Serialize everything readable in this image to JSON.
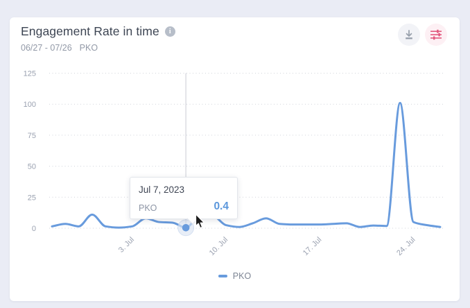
{
  "header": {
    "title": "Engagement Rate in time",
    "date_range": "06/27 - 07/26",
    "profile": "PKO"
  },
  "colors": {
    "background": "#eaecf5",
    "card": "#ffffff",
    "series_blue": "#689bdd",
    "tooltip_value_blue": "#5b97dc",
    "filter_icon_pink": "#e2587d",
    "download_icon_gray": "#99a1ad",
    "title_text": "#3d4553",
    "muted_text": "#9299a7",
    "axis_text": "#9aa1b0"
  },
  "tooltip": {
    "date": "Jul 7, 2023",
    "series": "PKO",
    "value": "0.4"
  },
  "chart_data": {
    "type": "line",
    "title": "Engagement Rate in time",
    "xlabel": "",
    "ylabel": "",
    "ylim": [
      0,
      125
    ],
    "y_ticks": [
      0,
      25,
      50,
      75,
      100,
      125
    ],
    "grid": "horizontal-dotted",
    "legend_position": "bottom",
    "x": [
      "Jun 27",
      "Jun 28",
      "Jun 29",
      "Jun 30",
      "Jul 1",
      "Jul 2",
      "Jul 3",
      "Jul 4",
      "Jul 5",
      "Jul 6",
      "Jul 7",
      "Jul 8",
      "Jul 9",
      "Jul 10",
      "Jul 11",
      "Jul 12",
      "Jul 13",
      "Jul 14",
      "Jul 15",
      "Jul 16",
      "Jul 17",
      "Jul 18",
      "Jul 19",
      "Jul 20",
      "Jul 21",
      "Jul 22",
      "Jul 23",
      "Jul 24",
      "Jul 25",
      "Jul 26"
    ],
    "x_ticks": [
      {
        "label": "3. Jul",
        "index": 6
      },
      {
        "label": "10. Jul",
        "index": 13
      },
      {
        "label": "17. Jul",
        "index": 20
      },
      {
        "label": "24. Jul",
        "index": 27
      }
    ],
    "series": [
      {
        "name": "PKO",
        "color": "#689bdd",
        "values": [
          1.5,
          3.5,
          1.5,
          11,
          1.5,
          0.5,
          1.5,
          8,
          5,
          4.5,
          0.4,
          9.5,
          10,
          2.5,
          1,
          4,
          8,
          3.5,
          3,
          3,
          3,
          3.5,
          4,
          1,
          2.2,
          1.8,
          101,
          5,
          2.5,
          1
        ]
      }
    ],
    "highlighted_point": {
      "x": "Jul 7",
      "index": 10,
      "value": 0.4
    }
  }
}
